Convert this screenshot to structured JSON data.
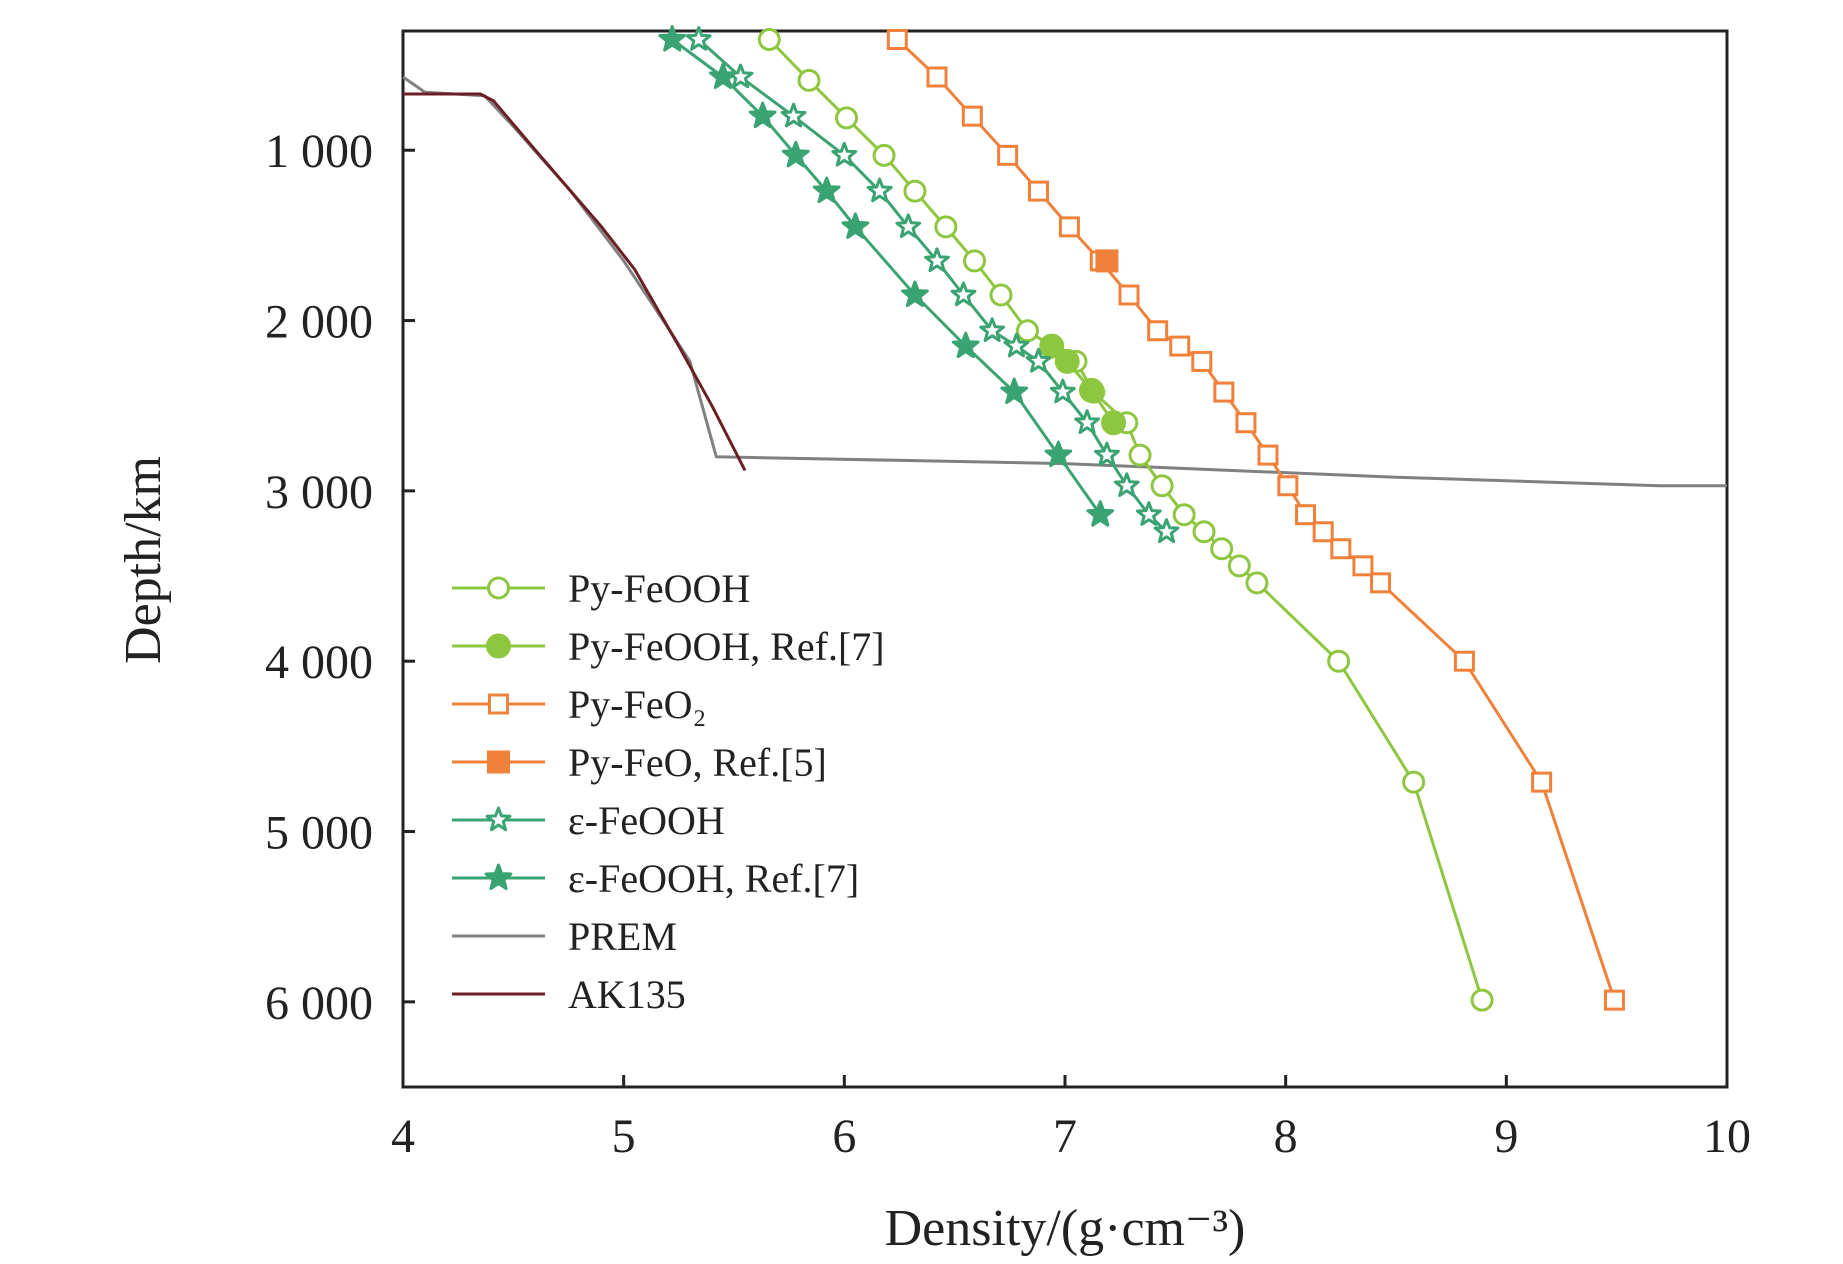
{
  "chart_data": {
    "type": "line",
    "xlabel": "Density/(g·cm⁻³)",
    "ylabel": "Depth/km",
    "xlim": [
      4,
      10
    ],
    "ylim": [
      300,
      6500
    ],
    "y_inverted": true,
    "x_ticks": [
      4,
      5,
      6,
      7,
      8,
      9,
      10
    ],
    "y_ticks": [
      1000,
      2000,
      3000,
      4000,
      5000,
      6000
    ],
    "x_tick_labels": [
      "4",
      "5",
      "6",
      "7",
      "8",
      "9",
      "10"
    ],
    "y_tick_labels": [
      "1 000",
      "2 000",
      "3 000",
      "4 000",
      "5 000",
      "6 000"
    ],
    "grid": false,
    "legend_position": "bottom-left",
    "series": [
      {
        "name": "Py-FeOOH",
        "color": "#8dc63f",
        "marker": "circle-open",
        "points": [
          [
            5.66,
            350
          ],
          [
            5.84,
            590
          ],
          [
            6.01,
            810
          ],
          [
            6.18,
            1030
          ],
          [
            6.32,
            1240
          ],
          [
            6.46,
            1450
          ],
          [
            6.59,
            1650
          ],
          [
            6.71,
            1850
          ],
          [
            6.83,
            2060
          ],
          [
            7.05,
            2240
          ],
          [
            7.13,
            2420
          ],
          [
            7.28,
            2600
          ],
          [
            7.34,
            2790
          ],
          [
            7.44,
            2970
          ],
          [
            7.54,
            3140
          ],
          [
            7.63,
            3240
          ],
          [
            7.71,
            3340
          ],
          [
            7.79,
            3440
          ],
          [
            7.87,
            3540
          ],
          [
            8.24,
            4000
          ],
          [
            8.58,
            4710
          ],
          [
            8.89,
            5990
          ]
        ]
      },
      {
        "name": "Py-FeOOH, Ref.[7]",
        "color": "#8dc63f",
        "marker": "circle-filled",
        "points": [
          [
            6.94,
            2150
          ],
          [
            7.01,
            2240
          ],
          [
            7.12,
            2410
          ],
          [
            7.22,
            2600
          ]
        ]
      },
      {
        "name": "Py-FeO₂",
        "color": "#f0813a",
        "marker": "square-open",
        "points": [
          [
            6.24,
            350
          ],
          [
            6.42,
            570
          ],
          [
            6.58,
            800
          ],
          [
            6.74,
            1030
          ],
          [
            6.88,
            1240
          ],
          [
            7.02,
            1450
          ],
          [
            7.16,
            1650
          ],
          [
            7.29,
            1850
          ],
          [
            7.42,
            2060
          ],
          [
            7.52,
            2150
          ],
          [
            7.62,
            2240
          ],
          [
            7.72,
            2420
          ],
          [
            7.82,
            2600
          ],
          [
            7.92,
            2790
          ],
          [
            8.01,
            2970
          ],
          [
            8.09,
            3140
          ],
          [
            8.17,
            3240
          ],
          [
            8.25,
            3340
          ],
          [
            8.35,
            3440
          ],
          [
            8.43,
            3540
          ],
          [
            8.81,
            4000
          ],
          [
            9.16,
            4710
          ],
          [
            9.49,
            5990
          ]
        ]
      },
      {
        "name": "Py-FeO, Ref.[5]",
        "color": "#f0813a",
        "marker": "square-filled",
        "points": [
          [
            7.19,
            1650
          ]
        ]
      },
      {
        "name": "ε-FeOOH",
        "color": "#3aa372",
        "marker": "star-open",
        "points": [
          [
            5.34,
            350
          ],
          [
            5.53,
            570
          ],
          [
            5.77,
            800
          ],
          [
            6.0,
            1030
          ],
          [
            6.16,
            1240
          ],
          [
            6.29,
            1450
          ],
          [
            6.42,
            1650
          ],
          [
            6.54,
            1850
          ],
          [
            6.67,
            2060
          ],
          [
            6.78,
            2150
          ],
          [
            6.88,
            2240
          ],
          [
            6.99,
            2420
          ],
          [
            7.1,
            2600
          ],
          [
            7.19,
            2790
          ],
          [
            7.28,
            2970
          ],
          [
            7.38,
            3140
          ],
          [
            7.46,
            3240
          ]
        ]
      },
      {
        "name": "ε-FeOOH, Ref.[7]",
        "color": "#3aa372",
        "marker": "star-filled",
        "points": [
          [
            5.22,
            350
          ],
          [
            5.45,
            570
          ],
          [
            5.63,
            800
          ],
          [
            5.78,
            1030
          ],
          [
            5.92,
            1240
          ],
          [
            6.05,
            1450
          ],
          [
            6.32,
            1850
          ],
          [
            6.55,
            2150
          ],
          [
            6.77,
            2420
          ],
          [
            6.97,
            2790
          ],
          [
            7.16,
            3140
          ]
        ]
      },
      {
        "name": "PREM",
        "color": "#808080",
        "marker": "none",
        "points": [
          [
            4.0,
            570
          ],
          [
            4.1,
            660
          ],
          [
            4.37,
            680
          ],
          [
            4.5,
            860
          ],
          [
            4.76,
            1240
          ],
          [
            5.0,
            1650
          ],
          [
            5.21,
            2060
          ],
          [
            5.3,
            2240
          ],
          [
            5.42,
            2800
          ],
          [
            7.0,
            2840
          ],
          [
            8.5,
            2920
          ],
          [
            9.7,
            2970
          ],
          [
            10.0,
            2970
          ]
        ]
      },
      {
        "name": "AK135",
        "color": "#6b1f24",
        "marker": "none",
        "points": [
          [
            4.0,
            670
          ],
          [
            4.35,
            670
          ],
          [
            4.41,
            710
          ],
          [
            4.6,
            1000
          ],
          [
            4.9,
            1450
          ],
          [
            5.05,
            1700
          ],
          [
            5.25,
            2150
          ],
          [
            5.4,
            2500
          ],
          [
            5.55,
            2880
          ]
        ]
      }
    ]
  }
}
